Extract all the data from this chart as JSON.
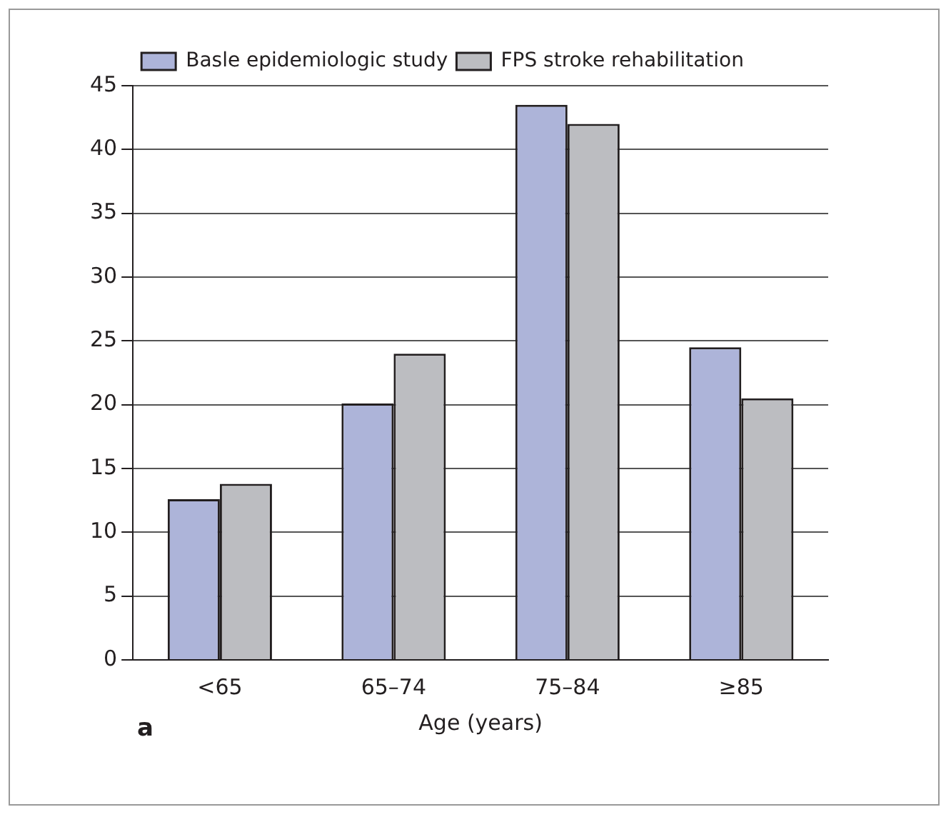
{
  "chart_data": {
    "type": "bar",
    "xlabel": "Age (years)",
    "categories": [
      "<65",
      "65–74",
      "75–84",
      "≥85"
    ],
    "series": [
      {
        "name": "Basle epidemiologic study",
        "color": "#adb4d9",
        "values": [
          12.6,
          20.1,
          43.5,
          24.5
        ]
      },
      {
        "name": "FPS stroke rehabilitation",
        "color": "#bcbdc1",
        "values": [
          13.8,
          24.0,
          42.0,
          20.5
        ]
      }
    ],
    "ylim": [
      0,
      45
    ],
    "yticks": [
      0,
      5,
      10,
      15,
      20,
      25,
      30,
      35,
      40,
      45
    ],
    "grid": "y",
    "legend": "top left",
    "annotations": [
      "a"
    ]
  }
}
